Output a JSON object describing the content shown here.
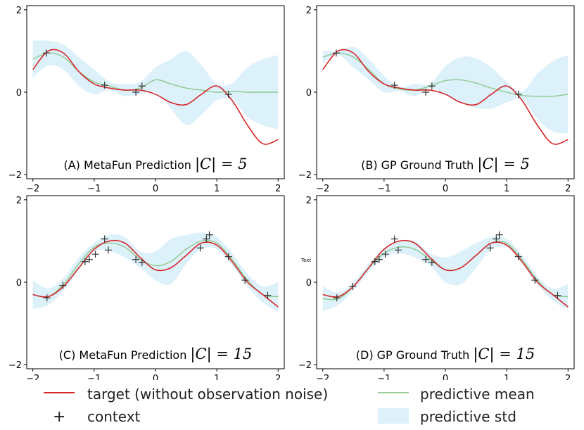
{
  "chart_data": [
    {
      "type": "line",
      "title": "(A) MetaFun Prediction",
      "title_math": "|C| = 5",
      "xlim": [
        -2.1,
        2.1
      ],
      "ylim": [
        -2.1,
        2.1
      ],
      "xticks": [
        "−2",
        "−1",
        "0",
        "1",
        "2"
      ],
      "yticks": [
        "−2",
        "0",
        "2"
      ],
      "x": [
        -2.0,
        -1.75,
        -1.5,
        -1.25,
        -1.0,
        -0.75,
        -0.5,
        -0.25,
        0.0,
        0.25,
        0.5,
        0.75,
        1.0,
        1.25,
        1.5,
        1.75,
        2.0
      ],
      "target": [
        0.55,
        1.0,
        0.95,
        0.5,
        0.2,
        0.1,
        0.05,
        0.05,
        -0.05,
        -0.25,
        -0.3,
        -0.05,
        0.15,
        -0.2,
        -0.8,
        -1.25,
        -1.15
      ],
      "mean": [
        0.8,
        0.95,
        0.85,
        0.5,
        0.25,
        0.15,
        0.05,
        0.1,
        0.3,
        0.2,
        0.1,
        0.05,
        0.0,
        0.02,
        0.0,
        0.0,
        0.0
      ],
      "std": [
        0.45,
        0.3,
        0.3,
        0.35,
        0.3,
        0.1,
        0.15,
        0.15,
        0.3,
        0.6,
        0.9,
        0.6,
        0.2,
        0.2,
        0.6,
        0.8,
        0.9
      ],
      "context_x": [
        -1.78,
        -0.83,
        -0.32,
        -0.22,
        1.19
      ],
      "context_y": [
        0.95,
        0.17,
        0.0,
        0.15,
        -0.05
      ]
    },
    {
      "type": "line",
      "title": "(B) GP Ground Truth",
      "title_math": "|C| = 5",
      "xlim": [
        -2.1,
        2.1
      ],
      "ylim": [
        -2.1,
        2.1
      ],
      "xticks": [
        "−2",
        "−1",
        "0",
        "1",
        "2"
      ],
      "yticks": [
        "−2",
        "0",
        "2"
      ],
      "x": [
        -2.0,
        -1.75,
        -1.5,
        -1.25,
        -1.0,
        -0.75,
        -0.5,
        -0.25,
        0.0,
        0.25,
        0.5,
        0.75,
        1.0,
        1.25,
        1.5,
        1.75,
        2.0
      ],
      "target": [
        0.55,
        1.0,
        0.95,
        0.5,
        0.2,
        0.1,
        0.05,
        0.05,
        -0.05,
        -0.25,
        -0.3,
        -0.05,
        0.15,
        -0.2,
        -0.8,
        -1.25,
        -1.15
      ],
      "mean": [
        0.85,
        0.95,
        0.85,
        0.55,
        0.2,
        0.08,
        0.05,
        0.15,
        0.28,
        0.3,
        0.22,
        0.1,
        0.0,
        -0.08,
        -0.1,
        -0.1,
        -0.05
      ],
      "std": [
        0.15,
        0.05,
        0.25,
        0.25,
        0.2,
        0.05,
        0.15,
        0.05,
        0.35,
        0.55,
        0.6,
        0.5,
        0.25,
        0.1,
        0.55,
        0.85,
        0.95
      ],
      "context_x": [
        -1.78,
        -0.83,
        -0.32,
        -0.22,
        1.19
      ],
      "context_y": [
        0.95,
        0.17,
        0.0,
        0.15,
        -0.05
      ]
    },
    {
      "type": "line",
      "title": "(C) MetaFun Prediction",
      "title_math": "|C| = 15",
      "xlim": [
        -2.1,
        2.1
      ],
      "ylim": [
        -2.1,
        2.1
      ],
      "xticks": [
        "−2",
        "−1",
        "0",
        "1",
        "2"
      ],
      "yticks": [
        "−2",
        "0",
        "2"
      ],
      "x": [
        -2.0,
        -1.75,
        -1.5,
        -1.25,
        -1.0,
        -0.75,
        -0.5,
        -0.25,
        0.0,
        0.25,
        0.5,
        0.75,
        1.0,
        1.25,
        1.5,
        1.75,
        2.0
      ],
      "target": [
        -0.3,
        -0.35,
        -0.1,
        0.35,
        0.8,
        1.0,
        0.95,
        0.6,
        0.3,
        0.35,
        0.65,
        0.95,
        0.9,
        0.5,
        0.0,
        -0.3,
        -0.6
      ],
      "mean": [
        -0.3,
        -0.35,
        -0.05,
        0.45,
        0.85,
        0.95,
        0.85,
        0.55,
        0.4,
        0.5,
        0.8,
        1.0,
        0.95,
        0.55,
        0.05,
        -0.3,
        -0.35
      ],
      "std": [
        0.35,
        0.2,
        0.15,
        0.15,
        0.1,
        0.2,
        0.25,
        0.2,
        0.35,
        0.55,
        0.35,
        0.2,
        0.15,
        0.15,
        0.15,
        0.2,
        0.35
      ],
      "context_x": [
        -1.77,
        -1.51,
        -1.15,
        -1.08,
        -0.98,
        -0.83,
        -0.77,
        -0.32,
        -0.22,
        0.73,
        0.83,
        0.88,
        1.19,
        1.46,
        1.83
      ],
      "context_y": [
        -0.38,
        -0.08,
        0.5,
        0.55,
        0.68,
        1.05,
        0.78,
        0.55,
        0.48,
        0.83,
        1.05,
        1.15,
        0.62,
        0.05,
        -0.32
      ]
    },
    {
      "type": "line",
      "title": "(D) GP Ground Truth",
      "title_math": "|C| = 15",
      "xlim": [
        -2.1,
        2.1
      ],
      "ylim": [
        -2.1,
        2.1
      ],
      "xticks": [
        "−2",
        "−1",
        "0",
        "1",
        "2"
      ],
      "yticks": [
        "−2",
        "0",
        "2"
      ],
      "annotation": "Text",
      "x": [
        -2.0,
        -1.75,
        -1.5,
        -1.25,
        -1.0,
        -0.75,
        -0.5,
        -0.25,
        0.0,
        0.25,
        0.5,
        0.75,
        1.0,
        1.25,
        1.5,
        1.75,
        2.0
      ],
      "target": [
        -0.3,
        -0.35,
        -0.1,
        0.35,
        0.8,
        1.0,
        0.95,
        0.6,
        0.3,
        0.35,
        0.65,
        0.95,
        0.9,
        0.5,
        0.0,
        -0.3,
        -0.6
      ],
      "mean": [
        -0.4,
        -0.4,
        -0.1,
        0.35,
        0.7,
        0.85,
        0.8,
        0.55,
        0.3,
        0.35,
        0.65,
        0.95,
        0.95,
        0.55,
        0.05,
        -0.3,
        -0.35
      ],
      "std": [
        0.3,
        0.15,
        0.1,
        0.1,
        0.1,
        0.15,
        0.2,
        0.15,
        0.3,
        0.4,
        0.3,
        0.15,
        0.1,
        0.1,
        0.1,
        0.15,
        0.3
      ],
      "context_x": [
        -1.77,
        -1.51,
        -1.15,
        -1.08,
        -0.98,
        -0.83,
        -0.77,
        -0.32,
        -0.22,
        0.73,
        0.83,
        0.88,
        1.19,
        1.46,
        1.83
      ],
      "context_y": [
        -0.38,
        -0.1,
        0.5,
        0.55,
        0.68,
        1.05,
        0.78,
        0.55,
        0.48,
        0.83,
        1.05,
        1.15,
        0.62,
        0.05,
        -0.32
      ]
    }
  ],
  "legend": {
    "target_label": "target (without observation noise)",
    "context_label": "context",
    "mean_label": "predictive mean",
    "std_label": "predictive std"
  },
  "colors": {
    "target": "#d62728",
    "mean": "#8cc98c",
    "std": "#ddf1fb",
    "context": "#333333"
  }
}
